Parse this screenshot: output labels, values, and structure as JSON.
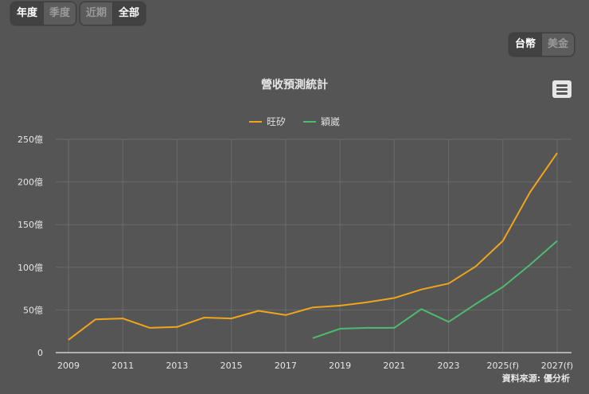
{
  "period_tabs": [
    {
      "label": "年度",
      "active": true
    },
    {
      "label": "季度",
      "active": false
    },
    {
      "label": "近期",
      "active": false
    },
    {
      "label": "全部",
      "active": true
    }
  ],
  "currency_tabs": [
    {
      "label": "台幣",
      "active": true
    },
    {
      "label": "美金",
      "active": false
    }
  ],
  "menu_icon": "hamburger-menu-icon",
  "source_text": "資料來源: 優分析",
  "colors": {
    "background": "#555555",
    "series1": "#f0a51c",
    "series2": "#4cbb6f",
    "grid": "#6a6a6a"
  },
  "chart_data": {
    "type": "line",
    "title": "營收預測統計",
    "xlabel": "",
    "ylabel": "",
    "ylim": [
      0,
      250
    ],
    "y_ticks": [
      0,
      50,
      100,
      150,
      200,
      250
    ],
    "y_tick_labels": [
      "0",
      "50億",
      "100億",
      "150億",
      "200億",
      "250億"
    ],
    "x": [
      "2009",
      "2010",
      "2011",
      "2012",
      "2013",
      "2014",
      "2015",
      "2016",
      "2017",
      "2018",
      "2019",
      "2020",
      "2021",
      "2022",
      "2023",
      "2024",
      "2025(f)",
      "2026(f)",
      "2027(f)"
    ],
    "x_tick_labels": [
      "2009",
      "2011",
      "2013",
      "2015",
      "2017",
      "2019",
      "2021",
      "2023",
      "2025(f)",
      "2027(f)"
    ],
    "legend_position": "top",
    "grid": true,
    "series": [
      {
        "name": "旺矽",
        "color": "#f0a51c",
        "values": [
          15,
          39,
          40,
          29,
          30,
          41,
          40,
          49,
          44,
          53,
          55,
          59,
          64,
          74,
          81,
          101,
          131,
          188,
          234
        ]
      },
      {
        "name": "穎崴",
        "color": "#4cbb6f",
        "values": [
          null,
          null,
          null,
          null,
          null,
          null,
          null,
          null,
          null,
          17,
          28,
          29,
          29,
          51,
          36,
          57,
          77,
          103,
          131
        ]
      }
    ]
  }
}
